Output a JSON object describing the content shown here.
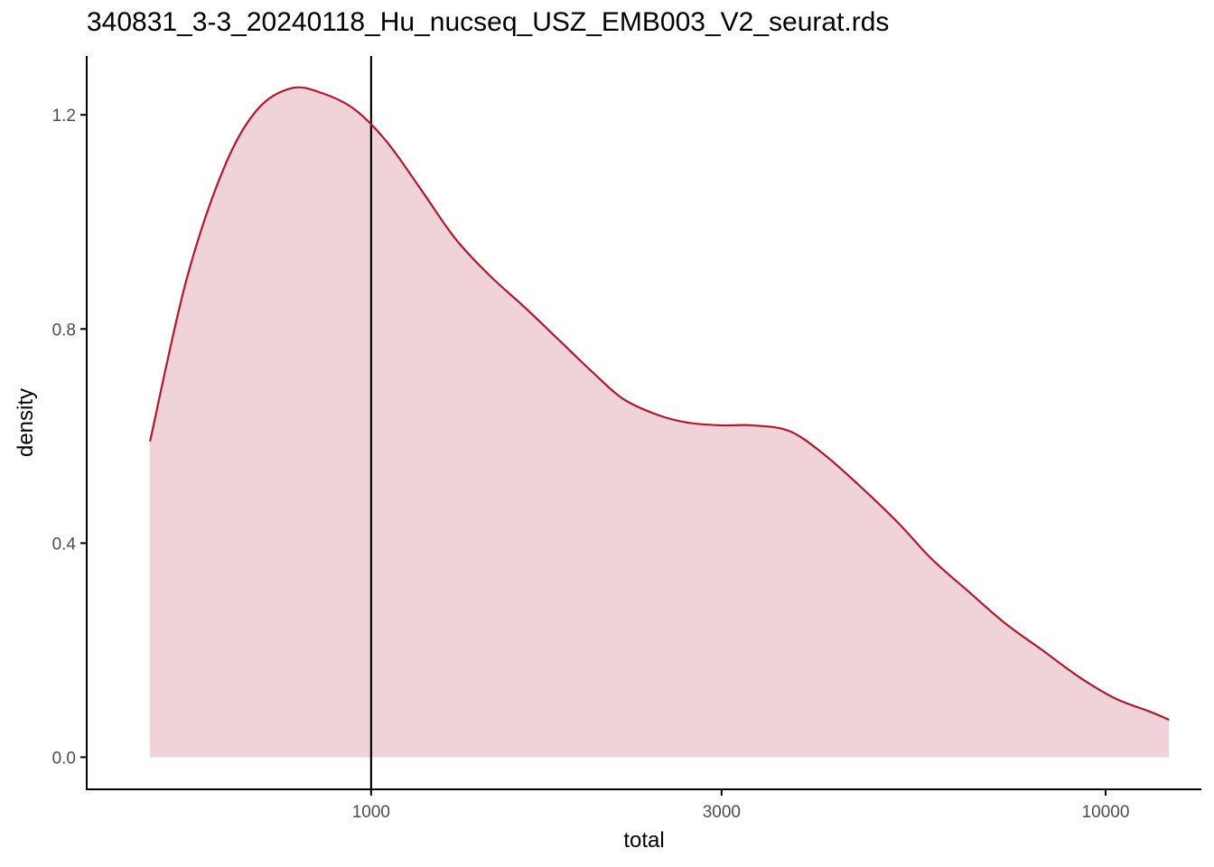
{
  "chart_data": {
    "type": "area",
    "title": "340831_3-3_20240118_Hu_nucseq_USZ_EMB003_V2_seurat.rds",
    "xlabel": "total",
    "ylabel": "density",
    "x_scale": "log10",
    "xlim": [
      410,
      13500
    ],
    "ylim": [
      -0.06,
      1.31
    ],
    "x_ticks": [
      1000,
      3000,
      10000
    ],
    "x_tick_labels": [
      "1000",
      "3000",
      "10000"
    ],
    "y_ticks": [
      0.0,
      0.4,
      0.8,
      1.2
    ],
    "y_tick_labels": [
      "0.0",
      "0.4",
      "0.8",
      "1.2"
    ],
    "vline": 1000,
    "grid": false,
    "colors": {
      "line": "#b2182b",
      "fill": "#efd3d9",
      "axis": "#000000",
      "vline": "#000000"
    },
    "series": [
      {
        "x": [
          500,
          560,
          630,
          700,
          780,
          860,
          950,
          1050,
          1170,
          1300,
          1450,
          1620,
          1800,
          2000,
          2200,
          2450,
          2700,
          3000,
          3300,
          3700,
          4100,
          4600,
          5200,
          5800,
          6500,
          7300,
          8200,
          9200,
          10300,
          11500,
          12200
        ],
        "y": [
          0.59,
          0.89,
          1.1,
          1.21,
          1.25,
          1.24,
          1.21,
          1.15,
          1.06,
          0.97,
          0.9,
          0.84,
          0.78,
          0.72,
          0.67,
          0.64,
          0.625,
          0.62,
          0.62,
          0.61,
          0.57,
          0.51,
          0.44,
          0.37,
          0.31,
          0.25,
          0.2,
          0.15,
          0.11,
          0.085,
          0.07
        ]
      }
    ]
  }
}
